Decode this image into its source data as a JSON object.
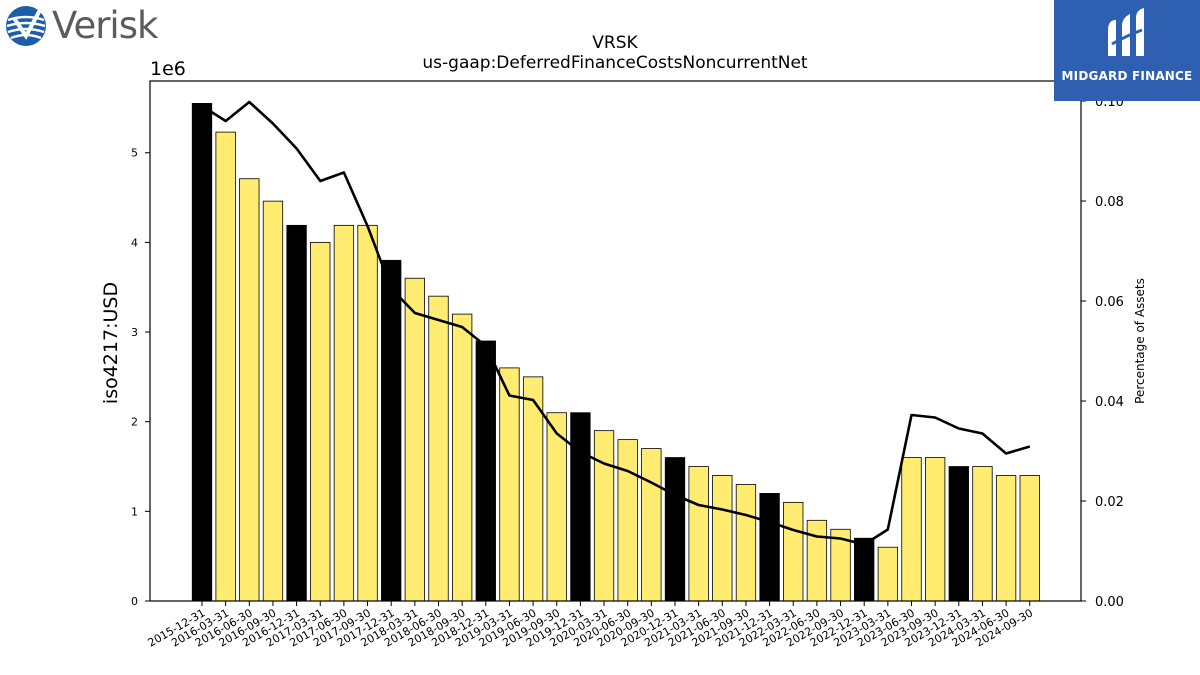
{
  "logos": {
    "left_brand": "Verisk",
    "right_brand": "MIDGARD FINANCE"
  },
  "chart_data": {
    "type": "bar",
    "title": "VRSK",
    "subtitle": "us-gaap:DeferredFinanceCostsNoncurrentNet",
    "ylabel": "iso4217:USD",
    "y2label": "Percentage of Assets",
    "y_multiplier": "1e6",
    "ylim": [
      0,
      5.8
    ],
    "y2lim": [
      0.0,
      0.104
    ],
    "yticks": [
      "0",
      "1",
      "2",
      "3",
      "4",
      "5"
    ],
    "y2ticks": [
      "0.00",
      "0.02",
      "0.04",
      "0.06",
      "0.08",
      "0.10"
    ],
    "grid": false,
    "categories": [
      "2015-12-31",
      "2016-03-31",
      "2016-06-30",
      "2016-09-30",
      "2016-12-31",
      "2017-03-31",
      "2017-06-30",
      "2017-09-30",
      "2017-12-31",
      "2018-03-31",
      "2018-06-30",
      "2018-09-30",
      "2018-12-31",
      "2019-03-31",
      "2019-06-30",
      "2019-09-30",
      "2019-12-31",
      "2020-03-31",
      "2020-06-30",
      "2020-09-30",
      "2020-12-31",
      "2021-03-31",
      "2021-06-30",
      "2021-09-30",
      "2021-12-31",
      "2022-03-31",
      "2022-06-30",
      "2022-09-30",
      "2022-12-31",
      "2023-03-31",
      "2023-06-30",
      "2023-09-30",
      "2023-12-31",
      "2024-03-31",
      "2024-06-30",
      "2024-09-30"
    ],
    "series": [
      {
        "kind": "bar",
        "values": [
          5.55,
          5.23,
          4.71,
          4.46,
          4.19,
          4.0,
          4.19,
          4.19,
          3.8,
          3.6,
          3.4,
          3.2,
          2.9,
          2.6,
          2.5,
          2.1,
          2.1,
          1.9,
          1.8,
          1.7,
          1.6,
          1.5,
          1.4,
          1.3,
          1.2,
          1.1,
          0.9,
          0.8,
          0.7,
          0.6,
          1.6,
          1.6,
          1.5,
          1.5,
          1.4,
          1.4
        ],
        "highlight": [
          true,
          false,
          false,
          false,
          true,
          false,
          false,
          false,
          true,
          false,
          false,
          false,
          true,
          false,
          false,
          false,
          true,
          false,
          false,
          false,
          true,
          false,
          false,
          false,
          true,
          false,
          false,
          false,
          true,
          false,
          false,
          false,
          true,
          false,
          false,
          false
        ]
      },
      {
        "kind": "line",
        "axis": "right",
        "values": [
          0.099,
          0.096,
          0.0998,
          0.0955,
          0.0905,
          0.084,
          0.0857,
          0.075,
          0.0625,
          0.0576,
          0.0562,
          0.0548,
          0.051,
          0.0411,
          0.0402,
          0.0335,
          0.0298,
          0.0275,
          0.026,
          0.0237,
          0.0212,
          0.0192,
          0.0183,
          0.0172,
          0.0158,
          0.0142,
          0.0129,
          0.0125,
          0.0113,
          0.0143,
          0.0372,
          0.0367,
          0.0345,
          0.0335,
          0.0295,
          0.0309
        ]
      }
    ],
    "colors": {
      "bar": "#ffec70",
      "bar_highlight": "#000000",
      "bar_edge": "#000000",
      "line": "#000000",
      "midgard_bg": "#2f5fb1",
      "verisk_blue": "#1e5ea8"
    }
  }
}
